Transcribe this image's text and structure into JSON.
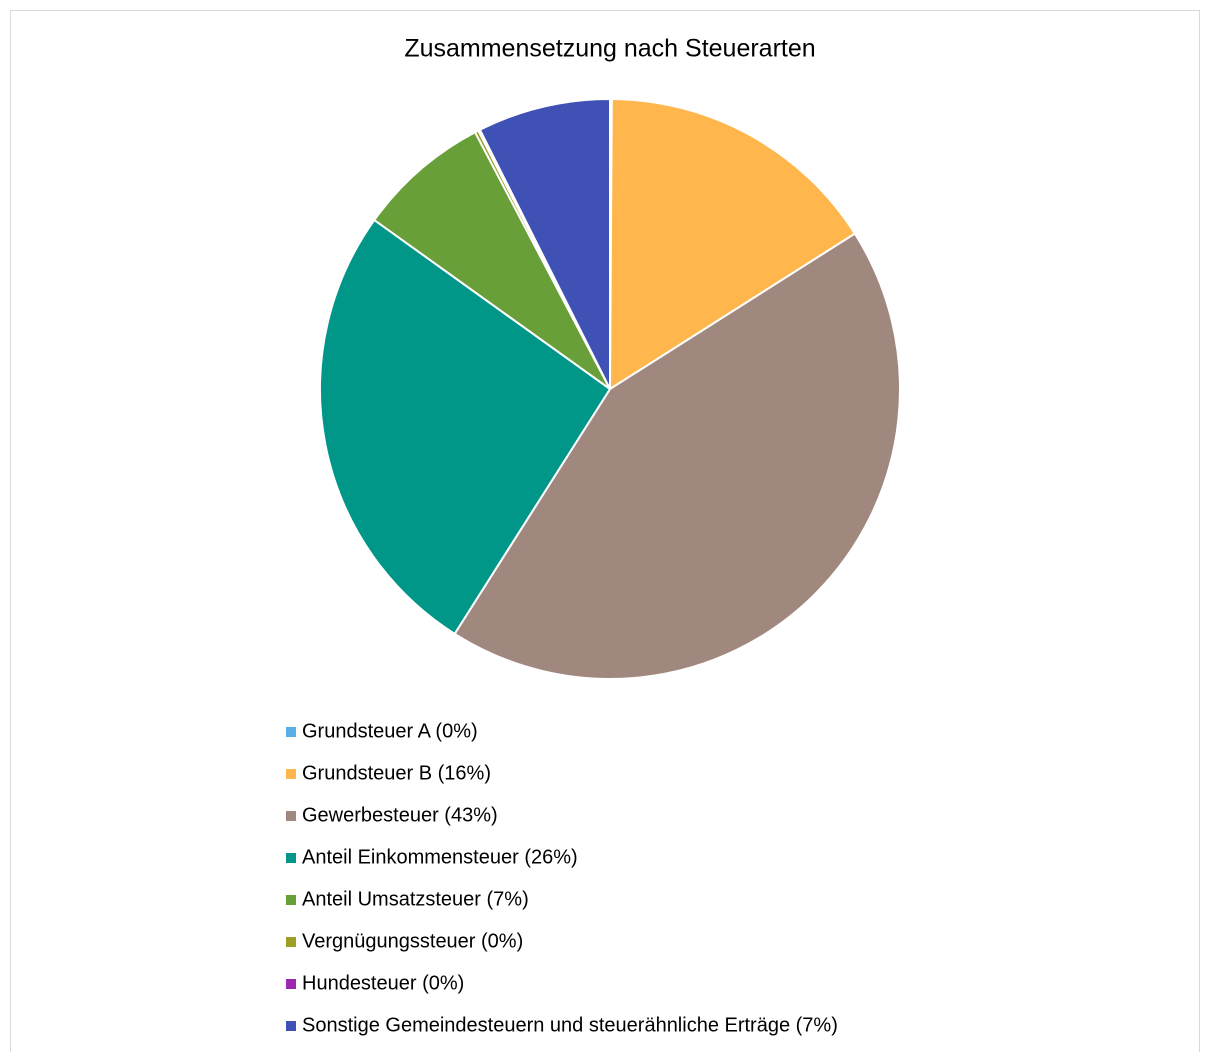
{
  "chart_data": {
    "type": "pie",
    "title": "Zusammensetzung nach Steuerarten",
    "categories": [
      "Grundsteuer A (0%)",
      "Grundsteuer B (16%)",
      "Gewerbesteuer (43%)",
      "Anteil Einkommensteuer (26%)",
      "Anteil Umsatzsteuer (7%)",
      "Vergnügungssteuer (0%)",
      "Hundesteuer (0%)",
      "Sonstige Gemeindesteuern und steuerähnliche Erträge (7%)"
    ],
    "values": [
      0.1,
      15.9,
      43,
      25.9,
      7.4,
      0.2,
      0.1,
      7.4
    ],
    "colors": [
      "#5aaee5",
      "#ffb64d",
      "#a1887f",
      "#009688",
      "#689f38",
      "#9e9d24",
      "#9c27b0",
      "#3f51b5"
    ],
    "legend": "bottom"
  }
}
